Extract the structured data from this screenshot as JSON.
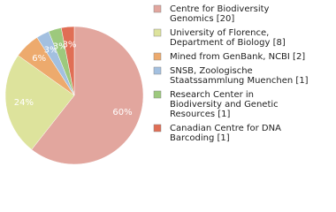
{
  "chart_data": {
    "type": "pie",
    "categories": [
      "Centre for Biodiversity\nGenomics [20]",
      "University of Florence,\nDepartment of Biology [8]",
      "Mined from GenBank, NCBI [2]",
      "SNSB, Zoologische\nStaatssammlung Muenchen [1]",
      "Research Center in\nBiodiversity and Genetic\nResources [1]",
      "Canadian Centre for DNA\nBarcoding [1]"
    ],
    "values": [
      60,
      24,
      6,
      3,
      3,
      3
    ],
    "value_labels": [
      "60%",
      "24%",
      "6%",
      "3%",
      "3%",
      "3%"
    ],
    "colors": [
      "#e2a69e",
      "#dde39c",
      "#edaa6d",
      "#a3c0e0",
      "#9dc97d",
      "#e06e55"
    ]
  }
}
